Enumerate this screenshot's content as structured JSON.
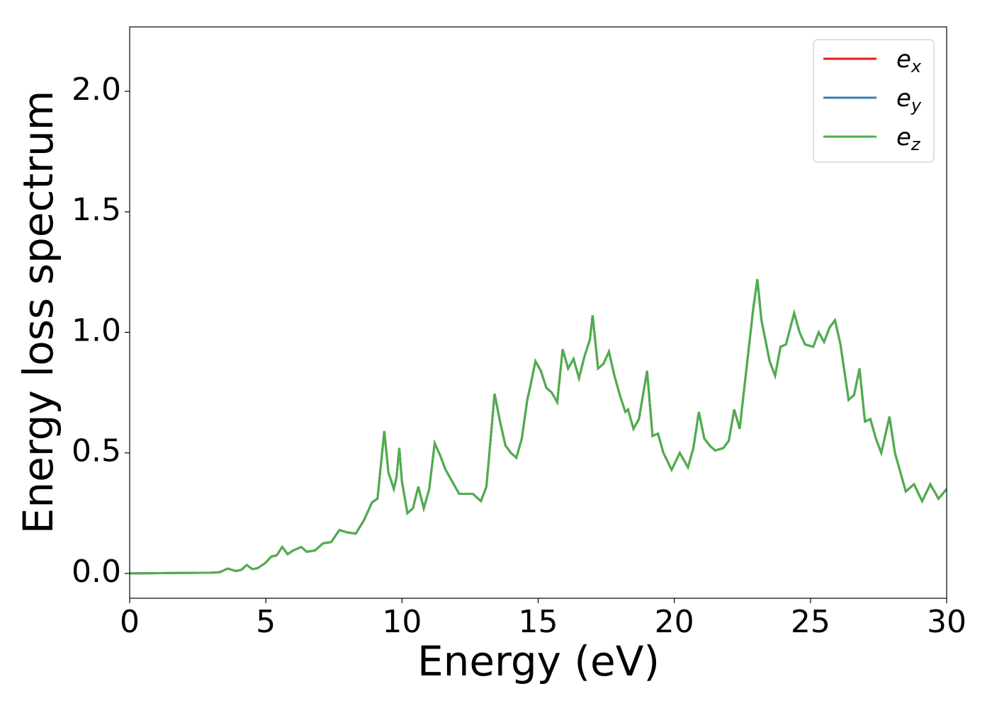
{
  "chart_data": {
    "type": "line",
    "xlabel": "Energy (eV)",
    "ylabel": "Energy loss spectrum",
    "x": [
      0,
      3,
      3.3,
      3.6,
      3.9,
      4.1,
      4.3,
      4.5,
      4.7,
      5.0,
      5.2,
      5.4,
      5.6,
      5.8,
      6.0,
      6.3,
      6.5,
      6.8,
      7.1,
      7.4,
      7.7,
      8.0,
      8.3,
      8.6,
      8.9,
      9.1,
      9.35,
      9.5,
      9.7,
      9.8,
      9.9,
      10.0,
      10.2,
      10.4,
      10.6,
      10.8,
      11.0,
      11.2,
      11.4,
      11.6,
      11.8,
      12.1,
      12.4,
      12.6,
      12.9,
      13.1,
      13.4,
      13.6,
      13.8,
      14.0,
      14.2,
      14.4,
      14.6,
      14.7,
      14.9,
      15.1,
      15.3,
      15.5,
      15.7,
      15.9,
      16.1,
      16.3,
      16.5,
      16.7,
      16.9,
      17.0,
      17.2,
      17.4,
      17.6,
      17.8,
      18.0,
      18.2,
      18.3,
      18.5,
      18.7,
      19.0,
      19.2,
      19.4,
      19.6,
      19.9,
      20.2,
      20.5,
      20.7,
      20.9,
      21.1,
      21.3,
      21.5,
      21.8,
      22.0,
      22.2,
      22.4,
      22.7,
      22.9,
      23.05,
      23.2,
      23.5,
      23.7,
      23.9,
      24.1,
      24.4,
      24.6,
      24.8,
      25.1,
      25.3,
      25.5,
      25.7,
      25.9,
      26.1,
      26.4,
      26.6,
      26.8,
      27.0,
      27.2,
      27.4,
      27.6,
      27.9,
      28.1,
      28.5,
      28.8,
      29.1,
      29.4,
      29.7,
      30
    ],
    "series": [
      {
        "name": "ex",
        "color": "#e41a1c",
        "values": [
          0,
          0.003,
          0.005,
          0.02,
          0.01,
          0.015,
          0.035,
          0.018,
          0.022,
          0.045,
          0.07,
          0.075,
          0.11,
          0.08,
          0.095,
          0.11,
          0.09,
          0.095,
          0.125,
          0.13,
          0.18,
          0.17,
          0.165,
          0.22,
          0.295,
          0.31,
          0.59,
          0.42,
          0.35,
          0.4,
          0.52,
          0.38,
          0.25,
          0.27,
          0.36,
          0.27,
          0.35,
          0.54,
          0.49,
          0.43,
          0.39,
          0.33,
          0.33,
          0.33,
          0.3,
          0.36,
          0.745,
          0.63,
          0.53,
          0.5,
          0.48,
          0.56,
          0.72,
          0.77,
          0.88,
          0.84,
          0.77,
          0.75,
          0.71,
          0.93,
          0.85,
          0.89,
          0.81,
          0.9,
          0.97,
          1.07,
          0.85,
          0.87,
          0.92,
          0.82,
          0.74,
          0.67,
          0.68,
          0.6,
          0.64,
          0.84,
          0.57,
          0.58,
          0.5,
          0.43,
          0.5,
          0.44,
          0.52,
          0.67,
          0.56,
          0.53,
          0.51,
          0.52,
          0.55,
          0.68,
          0.6,
          0.9,
          1.1,
          1.22,
          1.05,
          0.88,
          0.82,
          0.94,
          0.95,
          1.08,
          1.0,
          0.95,
          0.94,
          1.0,
          0.96,
          1.02,
          1.05,
          0.95,
          0.72,
          0.74,
          0.85,
          0.63,
          0.64,
          0.56,
          0.5,
          0.65,
          0.5,
          0.34,
          0.37,
          0.3,
          0.37,
          0.31,
          0.35
        ]
      },
      {
        "name": "ey",
        "color": "#377eb8",
        "values": [
          0,
          0.003,
          0.005,
          0.02,
          0.01,
          0.015,
          0.035,
          0.018,
          0.022,
          0.045,
          0.07,
          0.075,
          0.11,
          0.08,
          0.095,
          0.11,
          0.09,
          0.095,
          0.125,
          0.13,
          0.18,
          0.17,
          0.165,
          0.22,
          0.295,
          0.31,
          0.59,
          0.42,
          0.35,
          0.4,
          0.52,
          0.38,
          0.25,
          0.27,
          0.36,
          0.27,
          0.35,
          0.54,
          0.49,
          0.43,
          0.39,
          0.33,
          0.33,
          0.33,
          0.3,
          0.36,
          0.745,
          0.63,
          0.53,
          0.5,
          0.48,
          0.56,
          0.72,
          0.77,
          0.88,
          0.84,
          0.77,
          0.75,
          0.71,
          0.93,
          0.85,
          0.89,
          0.81,
          0.9,
          0.97,
          1.07,
          0.85,
          0.87,
          0.92,
          0.82,
          0.74,
          0.67,
          0.68,
          0.6,
          0.64,
          0.84,
          0.57,
          0.58,
          0.5,
          0.43,
          0.5,
          0.44,
          0.52,
          0.67,
          0.56,
          0.53,
          0.51,
          0.52,
          0.55,
          0.68,
          0.6,
          0.9,
          1.1,
          1.22,
          1.05,
          0.88,
          0.82,
          0.94,
          0.95,
          1.08,
          1.0,
          0.95,
          0.94,
          1.0,
          0.96,
          1.02,
          1.05,
          0.95,
          0.72,
          0.74,
          0.85,
          0.63,
          0.64,
          0.56,
          0.5,
          0.65,
          0.5,
          0.34,
          0.37,
          0.3,
          0.37,
          0.31,
          0.35
        ]
      },
      {
        "name": "ez",
        "color": "#4daf4a",
        "values": [
          0,
          0.003,
          0.005,
          0.02,
          0.01,
          0.015,
          0.035,
          0.018,
          0.022,
          0.045,
          0.07,
          0.075,
          0.11,
          0.08,
          0.095,
          0.11,
          0.09,
          0.095,
          0.125,
          0.13,
          0.18,
          0.17,
          0.165,
          0.22,
          0.295,
          0.31,
          0.59,
          0.42,
          0.35,
          0.4,
          0.52,
          0.38,
          0.25,
          0.27,
          0.36,
          0.27,
          0.35,
          0.54,
          0.49,
          0.43,
          0.39,
          0.33,
          0.33,
          0.33,
          0.3,
          0.36,
          0.745,
          0.63,
          0.53,
          0.5,
          0.48,
          0.56,
          0.72,
          0.77,
          0.88,
          0.84,
          0.77,
          0.75,
          0.71,
          0.93,
          0.85,
          0.89,
          0.81,
          0.9,
          0.97,
          1.07,
          0.85,
          0.87,
          0.92,
          0.82,
          0.74,
          0.67,
          0.68,
          0.6,
          0.64,
          0.84,
          0.57,
          0.58,
          0.5,
          0.43,
          0.5,
          0.44,
          0.52,
          0.67,
          0.56,
          0.53,
          0.51,
          0.52,
          0.55,
          0.68,
          0.6,
          0.9,
          1.1,
          1.22,
          1.05,
          0.88,
          0.82,
          0.94,
          0.95,
          1.08,
          1.0,
          0.95,
          0.94,
          1.0,
          0.96,
          1.02,
          1.05,
          0.95,
          0.72,
          0.74,
          0.85,
          0.63,
          0.64,
          0.56,
          0.5,
          0.65,
          0.5,
          0.34,
          0.37,
          0.3,
          0.37,
          0.31,
          0.35
        ]
      }
    ],
    "xlim": [
      0,
      30
    ],
    "xticks": [
      0,
      5,
      10,
      15,
      20,
      25,
      30
    ],
    "ylim": [
      -0.103,
      2.267
    ],
    "yticks": [
      {
        "value": 0,
        "label": "0.0"
      },
      0.5,
      {
        "value": 1,
        "label": "1.0"
      },
      1.5,
      {
        "value": 2,
        "label": "2.0"
      }
    ],
    "grid": false,
    "legend": "upper right"
  }
}
